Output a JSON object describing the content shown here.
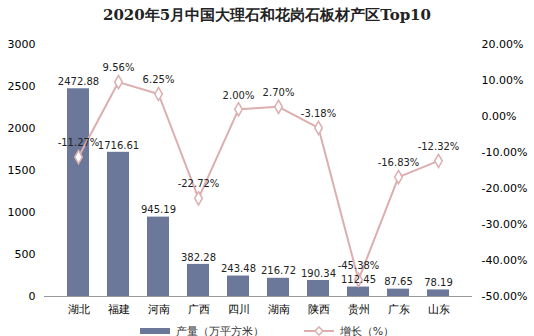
{
  "chart_data": {
    "type": "bar",
    "title": "2020年5月中国大理石和花岗石板材产区Top10",
    "categories": [
      "湖北",
      "福建",
      "河南",
      "广西",
      "四川",
      "湖南",
      "陕西",
      "贵州",
      "广东",
      "山东"
    ],
    "series": [
      {
        "name": "产量（万平方米）",
        "type": "bar",
        "color": "#6b7899",
        "values": [
          2472.88,
          1716.61,
          945.19,
          382.28,
          243.48,
          216.72,
          190.34,
          112.45,
          87.65,
          78.19
        ]
      },
      {
        "name": "增长（%）",
        "type": "line",
        "axis": "y2",
        "color": "#dcaeae",
        "marker": "diamond",
        "values": [
          -11.27,
          9.56,
          6.25,
          -22.72,
          2.0,
          2.7,
          -3.18,
          -45.38,
          -16.83,
          -12.32
        ],
        "value_labels": [
          "-11.27%",
          "9.56%",
          "6.25%",
          "-22.72%",
          "2.00%",
          "2.70%",
          "-3.18%",
          "-45.38%",
          "-16.83%",
          "-12.32%"
        ]
      }
    ],
    "ylim": [
      0,
      3000
    ],
    "yticks": [
      0,
      500,
      1000,
      1500,
      2000,
      2500,
      3000
    ],
    "y2lim": [
      -50,
      20
    ],
    "y2ticks": [
      {
        "value": -50,
        "label": "-50.00%"
      },
      {
        "value": -40,
        "label": "-40.00%"
      },
      {
        "value": -30,
        "label": "-30.00%"
      },
      {
        "value": -20,
        "label": "-20.00%"
      },
      {
        "value": -10,
        "label": "-10.00%"
      },
      {
        "value": 0,
        "label": "0.00%"
      },
      {
        "value": 10,
        "label": "10.00%"
      },
      {
        "value": 20,
        "label": "20.00%"
      }
    ],
    "grid": false,
    "data_labels": true,
    "legend": "bottom"
  }
}
